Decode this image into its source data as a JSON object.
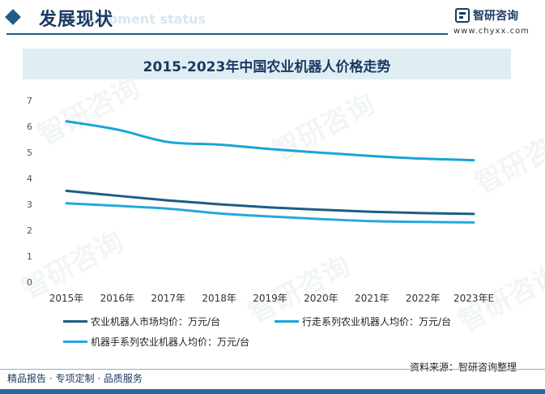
{
  "header": {
    "title": "发展现状",
    "ghost_subtitle": "Development status",
    "brand_name": "智研咨询",
    "brand_url": "www.chyxx.com"
  },
  "chart_data": {
    "type": "line",
    "title": "2015-2023年中国农业机器人价格走势",
    "categories": [
      "2015年",
      "2016年",
      "2017年",
      "2018年",
      "2019年",
      "2020年",
      "2021年",
      "2022年",
      "2023年E"
    ],
    "ylim": [
      0,
      7
    ],
    "yticks": [
      "0",
      "1",
      "2",
      "3",
      "4",
      "5",
      "6",
      "7"
    ],
    "grid": false,
    "legend_position": "bottom",
    "series": [
      {
        "name": "农业机器人市场均价：万元/台",
        "color": "#1b5e84",
        "values": [
          3.52,
          3.33,
          3.15,
          3.0,
          2.88,
          2.79,
          2.71,
          2.66,
          2.63
        ]
      },
      {
        "name": "行走系列农业机器人均价：万元/台",
        "color": "#1aa3d9",
        "values": [
          6.2,
          5.88,
          5.4,
          5.3,
          5.13,
          4.99,
          4.86,
          4.76,
          4.7
        ]
      },
      {
        "name": "机器手系列农业机器人均价：万元/台",
        "color": "#24a8dc",
        "values": [
          3.04,
          2.94,
          2.83,
          2.65,
          2.53,
          2.43,
          2.35,
          2.32,
          2.3
        ]
      }
    ]
  },
  "source": "资料来源：智研咨询整理",
  "footer": {
    "text": "精品报告 · 专项定制 · 品质服务"
  },
  "watermark_text": "智研咨询"
}
